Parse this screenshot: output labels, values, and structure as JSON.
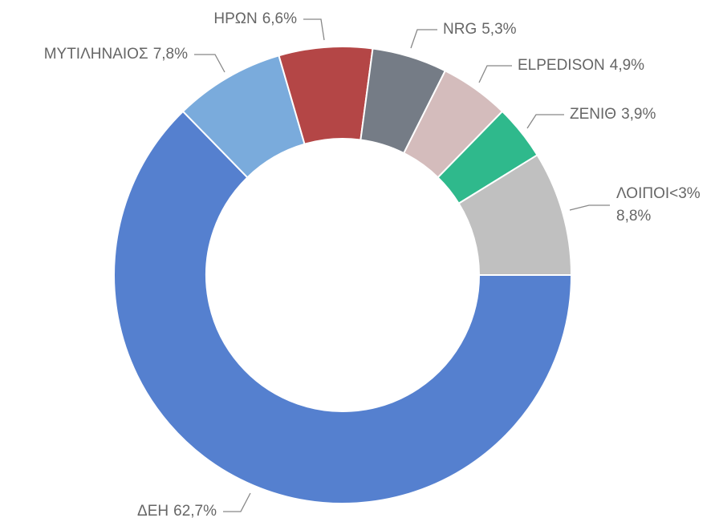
{
  "chart_data": {
    "type": "donut",
    "categories": [
      "ΔΕΗ",
      "ΜΥΤΙΛΗΝΑΙΟΣ",
      "ΗΡΩΝ",
      "NRG",
      "ELPEDISON",
      "ΖΕΝΙΘ",
      "ΛΟΙΠΟΙ<3%"
    ],
    "values": [
      62.7,
      7.8,
      6.6,
      5.3,
      4.9,
      3.9,
      8.8
    ],
    "value_labels": [
      "62,7%",
      "7,8%",
      "6,6%",
      "5,3%",
      "4,9%",
      "3,9%",
      "8,8%"
    ],
    "colors": [
      "#5580cf",
      "#7aabdc",
      "#b44646",
      "#757c86",
      "#d4bcbc",
      "#2fb98c",
      "#c0c0c0"
    ]
  }
}
